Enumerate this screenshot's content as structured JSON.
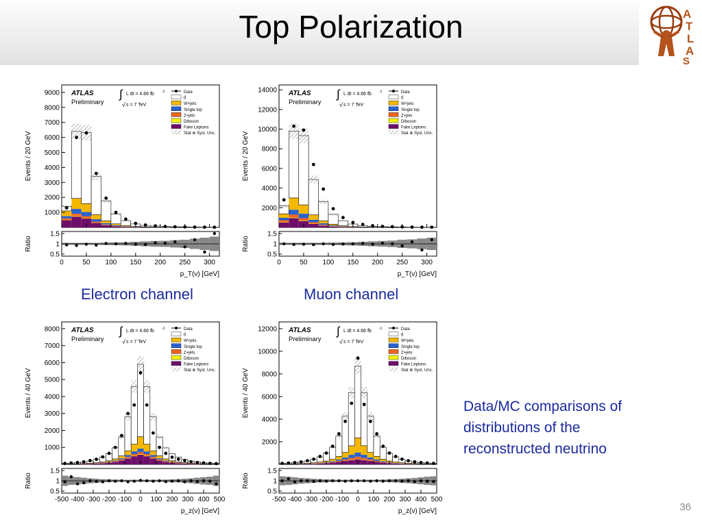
{
  "slide": {
    "title": "Top Polarization",
    "page_number": "36",
    "captions": [
      "Electron channel",
      "Muon channel"
    ],
    "notes": "Data/MC comparisons of distributions of the reconstructed neutrino",
    "logo_text": "ATLAS"
  },
  "colors": {
    "ttbar": "#ffffff",
    "wjets": "#f5b800",
    "single_top": "#2a62d0",
    "zjets": "#f06520",
    "diboson": "#f3f300",
    "fake": "#6e0e6a",
    "unc": "#888888",
    "text_blue": "#1a2a9e"
  },
  "legend": {
    "atlas": "ATLAS",
    "preliminary": "Preliminary",
    "lumi": "L dt = 4.66 fb",
    "lumi_exp": "-1",
    "energy": "s = 7 TeV",
    "entries": [
      "Data",
      "tt̄",
      "W+jets",
      "Single top",
      "Z+jets",
      "Diboson",
      "Fake Leptons",
      "Stat ⊕ Syst. Unc."
    ]
  },
  "chart_data": [
    {
      "type": "bar",
      "channel": "Electron channel",
      "xlabel": "p_T(ν) [GeV]",
      "ylabel": "Events / 20 GeV",
      "ratio_label": "Ratio",
      "xlim": [
        0,
        320
      ],
      "ylim": [
        0,
        9500
      ],
      "yticks": [
        1000,
        2000,
        3000,
        4000,
        5000,
        6000,
        7000,
        8000,
        9000
      ],
      "xticks": [
        0,
        50,
        100,
        150,
        200,
        250,
        300
      ],
      "ratio_ylim": [
        0.4,
        1.6
      ],
      "ratio_ticks": [
        0.5,
        1,
        1.5
      ],
      "bin_edges": [
        0,
        20,
        40,
        60,
        80,
        100,
        120,
        140,
        160,
        180,
        200,
        220,
        240,
        260,
        280,
        300,
        320
      ],
      "stack": [
        {
          "name": "Fake Leptons",
          "values": [
            480,
            720,
            590,
            300,
            140,
            70,
            40,
            20,
            10,
            6,
            4,
            3,
            2,
            1,
            1,
            1
          ]
        },
        {
          "name": "Diboson",
          "values": [
            20,
            30,
            25,
            15,
            10,
            6,
            4,
            2,
            1,
            1,
            1,
            0,
            0,
            0,
            0,
            0
          ]
        },
        {
          "name": "Z+jets",
          "values": [
            100,
            160,
            130,
            70,
            40,
            20,
            10,
            6,
            3,
            2,
            1,
            1,
            0,
            0,
            0,
            0
          ]
        },
        {
          "name": "Single top",
          "values": [
            150,
            320,
            280,
            160,
            90,
            50,
            25,
            12,
            7,
            4,
            2,
            1,
            1,
            0,
            0,
            0
          ]
        },
        {
          "name": "W+jets",
          "values": [
            350,
            700,
            560,
            300,
            160,
            90,
            50,
            25,
            12,
            7,
            3,
            2,
            1,
            1,
            0,
            0
          ]
        },
        {
          "name": "tt̄",
          "values": [
            300,
            4470,
            4735,
            2565,
            1330,
            654,
            321,
            165,
            97,
            70,
            49,
            33,
            26,
            18,
            14,
            9
          ]
        }
      ],
      "uncertainty_fraction": 0.08,
      "data_x": [
        10,
        30,
        50,
        70,
        90,
        110,
        130,
        150,
        170,
        190,
        210,
        230,
        250,
        270,
        290,
        310
      ],
      "data_y": [
        1300,
        6000,
        6300,
        3600,
        1950,
        1000,
        550,
        270,
        160,
        100,
        60,
        45,
        30,
        20,
        15,
        10
      ],
      "ratio": [
        0.95,
        0.92,
        0.98,
        0.94,
        1.02,
        1.0,
        1.02,
        0.98,
        0.97,
        1.05,
        1.03,
        1.1,
        0.85,
        1.2,
        0.6,
        1.5
      ],
      "ratio_band": [
        0.05,
        0.05,
        0.05,
        0.05,
        0.06,
        0.07,
        0.08,
        0.1,
        0.12,
        0.14,
        0.15,
        0.18,
        0.2,
        0.25,
        0.3,
        0.35
      ]
    },
    {
      "type": "bar",
      "channel": "Muon channel",
      "xlabel": "p_T(ν) [GeV]",
      "ylabel": "Events / 20 GeV",
      "ratio_label": "Ratio",
      "xlim": [
        0,
        320
      ],
      "ylim": [
        0,
        14500
      ],
      "yticks": [
        2000,
        4000,
        6000,
        8000,
        10000,
        12000,
        14000
      ],
      "xticks": [
        0,
        50,
        100,
        150,
        200,
        250,
        300
      ],
      "ratio_ylim": [
        0.4,
        1.6
      ],
      "ratio_ticks": [
        0.5,
        1,
        1.5
      ],
      "bin_edges": [
        0,
        20,
        40,
        60,
        80,
        100,
        120,
        140,
        160,
        180,
        200,
        220,
        240,
        260,
        280,
        300,
        320
      ],
      "stack": [
        {
          "name": "Fake Leptons",
          "values": [
            500,
            950,
            650,
            350,
            170,
            80,
            40,
            20,
            10,
            6,
            4,
            3,
            2,
            1,
            1,
            1
          ]
        },
        {
          "name": "Diboson",
          "values": [
            30,
            50,
            40,
            25,
            15,
            8,
            5,
            3,
            2,
            1,
            1,
            0,
            0,
            0,
            0,
            0
          ]
        },
        {
          "name": "Z+jets",
          "values": [
            200,
            300,
            250,
            150,
            80,
            40,
            20,
            10,
            5,
            3,
            2,
            1,
            1,
            0,
            0,
            0
          ]
        },
        {
          "name": "Single top",
          "values": [
            250,
            500,
            450,
            250,
            150,
            80,
            40,
            20,
            10,
            6,
            3,
            2,
            1,
            0,
            0,
            0
          ]
        },
        {
          "name": "W+jets",
          "values": [
            400,
            1200,
            900,
            500,
            250,
            120,
            60,
            30,
            15,
            8,
            4,
            2,
            1,
            1,
            0,
            0
          ]
        },
        {
          "name": "tt̄",
          "values": [
            800,
            6800,
            7050,
            3600,
            1935,
            995,
            505,
            260,
            140,
            84,
            61,
            40,
            30,
            20,
            15,
            10
          ]
        }
      ],
      "uncertainty_fraction": 0.08,
      "data_x": [
        10,
        30,
        50,
        70,
        90,
        110,
        130,
        150,
        170,
        190,
        210,
        230,
        250,
        270,
        290,
        310
      ],
      "data_y": [
        2800,
        10300,
        9900,
        6400,
        3900,
        1900,
        1000,
        500,
        300,
        170,
        100,
        70,
        45,
        30,
        25,
        20
      ],
      "ratio": [
        1.0,
        0.97,
        0.98,
        0.96,
        1.0,
        0.97,
        0.99,
        1.0,
        1.02,
        0.98,
        1.03,
        1.0,
        0.9,
        1.1,
        0.7,
        1.2
      ],
      "ratio_band": [
        0.05,
        0.05,
        0.05,
        0.05,
        0.05,
        0.06,
        0.07,
        0.08,
        0.1,
        0.12,
        0.14,
        0.16,
        0.2,
        0.22,
        0.26,
        0.3
      ]
    },
    {
      "type": "bar",
      "channel": "Electron channel",
      "xlabel": "p_z(ν) [GeV]",
      "ylabel": "Events / 40 GeV",
      "ratio_label": "Ratio",
      "xlim": [
        -500,
        500
      ],
      "ylim": [
        0,
        8400
      ],
      "yticks": [
        1000,
        2000,
        3000,
        4000,
        5000,
        6000,
        7000,
        8000
      ],
      "xticks": [
        -500,
        -400,
        -300,
        -200,
        -100,
        0,
        100,
        200,
        300,
        400,
        500
      ],
      "ratio_ylim": [
        0.4,
        1.6
      ],
      "ratio_ticks": [
        0.5,
        1,
        1.5
      ],
      "bin_edges": [
        -500,
        -460,
        -420,
        -380,
        -340,
        -300,
        -260,
        -220,
        -180,
        -140,
        -100,
        -60,
        -20,
        20,
        60,
        100,
        140,
        180,
        220,
        260,
        300,
        340,
        380,
        420,
        460,
        500
      ],
      "stack": [
        {
          "name": "Fake Leptons",
          "values": [
            10,
            12,
            15,
            20,
            30,
            45,
            65,
            95,
            150,
            230,
            350,
            480,
            570,
            480,
            350,
            230,
            150,
            95,
            65,
            45,
            30,
            20,
            15,
            12,
            10
          ]
        },
        {
          "name": "Diboson",
          "values": [
            1,
            1,
            1,
            2,
            2,
            3,
            4,
            6,
            8,
            12,
            18,
            25,
            30,
            25,
            18,
            12,
            8,
            6,
            4,
            3,
            2,
            2,
            1,
            1,
            1
          ]
        },
        {
          "name": "Z+jets",
          "values": [
            2,
            3,
            4,
            5,
            7,
            10,
            14,
            20,
            30,
            45,
            70,
            100,
            130,
            100,
            70,
            45,
            30,
            20,
            14,
            10,
            7,
            5,
            4,
            3,
            2
          ]
        },
        {
          "name": "Single top",
          "values": [
            3,
            4,
            5,
            7,
            10,
            14,
            20,
            30,
            45,
            70,
            110,
            160,
            200,
            160,
            110,
            70,
            45,
            30,
            20,
            14,
            10,
            7,
            5,
            4,
            3
          ]
        },
        {
          "name": "W+jets",
          "values": [
            5,
            7,
            10,
            14,
            20,
            28,
            40,
            60,
            90,
            150,
            250,
            420,
            700,
            420,
            250,
            150,
            90,
            60,
            40,
            28,
            20,
            14,
            10,
            7,
            5
          ]
        },
        {
          "name": "tt̄",
          "values": [
            40,
            55,
            70,
            95,
            130,
            200,
            290,
            420,
            650,
            1100,
            2000,
            3400,
            4270,
            3400,
            2000,
            1100,
            650,
            420,
            290,
            200,
            130,
            95,
            70,
            55,
            40
          ]
        }
      ],
      "uncertainty_fraction": 0.08,
      "data_x": [
        -480,
        -440,
        -400,
        -360,
        -320,
        -280,
        -240,
        -200,
        -160,
        -120,
        -80,
        -40,
        0,
        40,
        80,
        120,
        160,
        200,
        240,
        280,
        320,
        360,
        400,
        440,
        480
      ],
      "data_y": [
        55,
        80,
        110,
        150,
        220,
        300,
        440,
        650,
        1000,
        1700,
        3000,
        3500,
        5400,
        3500,
        1850,
        1000,
        650,
        420,
        300,
        220,
        150,
        110,
        80,
        60,
        45
      ],
      "ratio": [
        0.95,
        1.2,
        0.85,
        0.9,
        1.0,
        0.97,
        0.95,
        1.0,
        0.98,
        1.0,
        0.95,
        0.98,
        1.02,
        1.0,
        0.98,
        1.0,
        0.96,
        0.98,
        1.0,
        0.95,
        1.0,
        0.97,
        1.0,
        0.98,
        0.85
      ],
      "ratio_band": [
        0.25,
        0.2,
        0.18,
        0.15,
        0.12,
        0.1,
        0.08,
        0.07,
        0.06,
        0.05,
        0.05,
        0.05,
        0.05,
        0.05,
        0.05,
        0.05,
        0.06,
        0.07,
        0.08,
        0.1,
        0.12,
        0.15,
        0.18,
        0.2,
        0.25
      ]
    },
    {
      "type": "bar",
      "channel": "Muon channel",
      "xlabel": "p_z(ν) [GeV]",
      "ylabel": "Events / 40 GeV",
      "ratio_label": "Ratio",
      "xlim": [
        -500,
        500
      ],
      "ylim": [
        0,
        12600
      ],
      "yticks": [
        2000,
        4000,
        6000,
        8000,
        10000,
        12000
      ],
      "xticks": [
        -500,
        -400,
        -300,
        -200,
        -100,
        0,
        100,
        200,
        300,
        400,
        500
      ],
      "ratio_ylim": [
        0.4,
        1.6
      ],
      "ratio_ticks": [
        0.5,
        1,
        1.5
      ],
      "bin_edges": [
        -500,
        -460,
        -420,
        -380,
        -340,
        -300,
        -260,
        -220,
        -180,
        -140,
        -100,
        -60,
        -20,
        20,
        60,
        100,
        140,
        180,
        220,
        260,
        300,
        340,
        380,
        420,
        460,
        500
      ],
      "stack": [
        {
          "name": "Fake Leptons",
          "values": [
            10,
            12,
            15,
            20,
            30,
            45,
            65,
            95,
            150,
            230,
            300,
            380,
            450,
            380,
            300,
            230,
            150,
            95,
            65,
            45,
            30,
            20,
            15,
            12,
            10
          ]
        },
        {
          "name": "Diboson",
          "values": [
            1,
            1,
            1,
            2,
            2,
            3,
            4,
            6,
            8,
            12,
            18,
            25,
            30,
            25,
            18,
            12,
            8,
            6,
            4,
            3,
            2,
            2,
            1,
            1,
            1
          ]
        },
        {
          "name": "Z+jets",
          "values": [
            3,
            4,
            5,
            7,
            10,
            14,
            20,
            30,
            45,
            70,
            110,
            160,
            200,
            160,
            110,
            70,
            45,
            30,
            20,
            14,
            10,
            7,
            5,
            4,
            3
          ]
        },
        {
          "name": "Single top",
          "values": [
            5,
            7,
            9,
            12,
            17,
            24,
            34,
            50,
            75,
            115,
            180,
            280,
            370,
            280,
            180,
            115,
            75,
            50,
            34,
            24,
            17,
            12,
            9,
            7,
            5
          ]
        },
        {
          "name": "W+jets",
          "values": [
            10,
            14,
            20,
            28,
            40,
            55,
            80,
            120,
            180,
            280,
            450,
            800,
            1300,
            800,
            450,
            280,
            180,
            120,
            80,
            55,
            40,
            28,
            20,
            14,
            10
          ]
        },
        {
          "name": "tt̄",
          "values": [
            60,
            85,
            110,
            150,
            210,
            310,
            460,
            680,
            1050,
            1800,
            3200,
            4700,
            6350,
            4700,
            3200,
            1800,
            1050,
            680,
            460,
            310,
            210,
            150,
            110,
            85,
            60
          ]
        }
      ],
      "uncertainty_fraction": 0.08,
      "data_x": [
        -480,
        -440,
        -400,
        -360,
        -320,
        -280,
        -240,
        -200,
        -160,
        -120,
        -80,
        -40,
        0,
        40,
        80,
        120,
        160,
        200,
        240,
        280,
        320,
        360,
        400,
        440,
        480
      ],
      "data_y": [
        90,
        120,
        160,
        220,
        320,
        460,
        700,
        1000,
        1600,
        2700,
        3800,
        5400,
        9400,
        5300,
        3800,
        2700,
        1600,
        1000,
        700,
        460,
        320,
        220,
        160,
        120,
        90
      ],
      "ratio": [
        1.0,
        1.1,
        0.95,
        1.0,
        1.0,
        0.97,
        1.0,
        0.98,
        1.0,
        1.0,
        0.98,
        1.0,
        1.0,
        1.0,
        0.98,
        1.0,
        0.98,
        1.0,
        1.0,
        0.98,
        1.0,
        0.96,
        1.0,
        0.98,
        0.97
      ],
      "ratio_band": [
        0.22,
        0.2,
        0.17,
        0.14,
        0.12,
        0.1,
        0.08,
        0.07,
        0.06,
        0.05,
        0.05,
        0.05,
        0.05,
        0.05,
        0.05,
        0.05,
        0.06,
        0.07,
        0.08,
        0.1,
        0.12,
        0.14,
        0.17,
        0.2,
        0.22
      ]
    }
  ]
}
